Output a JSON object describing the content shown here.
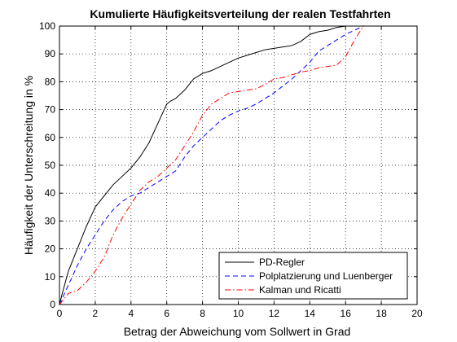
{
  "chart_data": {
    "type": "line",
    "title": "Kumulierte Häufigkeitsverteilung der realen Testfahrten",
    "xlabel": "Betrag der Abweichung vom Sollwert in Grad",
    "ylabel": "Häufigkeit der Unterschreitung in %",
    "xlim": [
      0,
      20
    ],
    "ylim": [
      0,
      100
    ],
    "xticks": [
      0,
      2,
      4,
      6,
      8,
      10,
      12,
      14,
      16,
      18,
      20
    ],
    "yticks": [
      0,
      10,
      20,
      30,
      40,
      50,
      60,
      70,
      80,
      90,
      100
    ],
    "grid": true,
    "legend_position": "bottom-right",
    "series": [
      {
        "name": "PD-Regler",
        "color": "#000000",
        "dash": "solid",
        "x": [
          0,
          0.2,
          0.5,
          1,
          1.5,
          2,
          2.5,
          3,
          3.5,
          4,
          4.5,
          5,
          5.5,
          6,
          6.2,
          6.5,
          7,
          7.5,
          8,
          8.5,
          9,
          9.5,
          10,
          10.5,
          11,
          11.5,
          12,
          12.5,
          13,
          13.5,
          14,
          14.5,
          15,
          15.5,
          16
        ],
        "y": [
          0,
          5,
          12,
          20,
          28,
          35,
          39,
          43,
          46,
          49,
          53,
          58,
          65,
          72,
          73,
          74,
          77,
          81,
          83,
          84,
          85.5,
          87,
          88.5,
          89.5,
          90.5,
          91.5,
          92,
          92.5,
          93,
          94.5,
          97,
          98,
          98.5,
          99.5,
          100
        ]
      },
      {
        "name": "Polplatzierung und Luenberger",
        "color": "#0000ff",
        "dash": "dashed",
        "x": [
          0,
          0.5,
          1,
          1.5,
          2,
          2.5,
          3,
          3.5,
          4,
          4.5,
          5,
          5.5,
          6,
          6.5,
          7,
          7.5,
          8,
          8.5,
          9,
          9.5,
          10,
          10.5,
          11,
          11.5,
          12,
          12.5,
          13,
          13.5,
          14,
          14.5,
          15,
          15.5,
          16,
          16.5,
          17
        ],
        "y": [
          0,
          7,
          14,
          20,
          25,
          30,
          34,
          37,
          39,
          40,
          42,
          44,
          46,
          48,
          53,
          57,
          60,
          63,
          66,
          68,
          69.5,
          70.5,
          72,
          74,
          76,
          78.5,
          81,
          84,
          87,
          91,
          93,
          95,
          97,
          98.5,
          100
        ]
      },
      {
        "name": "Kalman und Ricatti",
        "color": "#ff0000",
        "dash": "dashdot",
        "x": [
          0,
          0.5,
          1,
          1.5,
          2,
          2.5,
          3,
          3.5,
          4,
          4.5,
          5,
          5.5,
          6,
          6.5,
          7,
          7.5,
          8,
          8.5,
          9,
          9.5,
          10,
          10.5,
          11,
          11.5,
          12,
          12.5,
          13,
          13.5,
          14,
          14.5,
          15,
          15.5,
          16,
          16.5,
          17
        ],
        "y": [
          0,
          4,
          5,
          8,
          12,
          17,
          25,
          31,
          36,
          41,
          44,
          46,
          49,
          52,
          57,
          62,
          68,
          72,
          74,
          76,
          76.5,
          77,
          77.5,
          79,
          81,
          81.5,
          82.5,
          83.5,
          84,
          85,
          85.5,
          86,
          89,
          95,
          100
        ]
      }
    ]
  }
}
